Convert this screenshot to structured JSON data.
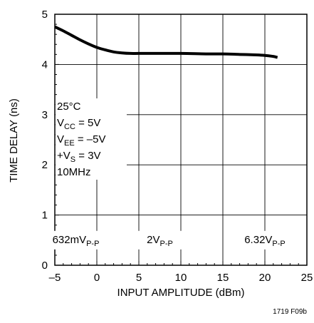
{
  "chart_data": {
    "type": "line",
    "xlabel": "INPUT AMPLITUDE (dBm)",
    "ylabel": "TIME DELAY (ns)",
    "xlim": [
      -5,
      25
    ],
    "ylim": [
      0,
      5
    ],
    "xticks": [
      -5,
      0,
      5,
      10,
      15,
      20,
      25
    ],
    "yticks": [
      0,
      1,
      2,
      3,
      4,
      5
    ],
    "xtick_labels": [
      "–5",
      "0",
      "5",
      "10",
      "15",
      "20",
      "25"
    ],
    "ytick_labels": [
      "0",
      "1",
      "2",
      "3",
      "4",
      "5"
    ],
    "grid": true,
    "series": [
      {
        "x": [
          -5,
          -4,
          -3,
          -2,
          -1,
          0,
          1,
          2,
          3,
          4,
          5,
          7,
          10,
          13,
          15,
          17,
          19,
          20,
          21,
          21.5
        ],
        "y": [
          4.75,
          4.67,
          4.58,
          4.49,
          4.41,
          4.34,
          4.29,
          4.25,
          4.23,
          4.22,
          4.22,
          4.22,
          4.22,
          4.21,
          4.21,
          4.2,
          4.19,
          4.18,
          4.16,
          4.14
        ]
      }
    ],
    "conditions": {
      "temp": "25°C",
      "vcc_main": "V",
      "vcc_sub": "CC",
      "vcc_rest": " = 5V",
      "vee_main": "V",
      "vee_sub": "EE",
      "vee_rest": " = –5V",
      "vs_main": "+V",
      "vs_sub": "S",
      "vs_rest": " = 3V",
      "freq": "10MHz"
    },
    "region_labels": [
      {
        "main": "632mV",
        "sub": "P-P",
        "x": -2.5
      },
      {
        "main": "2V",
        "sub": "P-P",
        "x": 7.5
      },
      {
        "main": "6.32V",
        "sub": "P-P",
        "x": 20
      }
    ],
    "figure_id": "1719 F09b"
  }
}
